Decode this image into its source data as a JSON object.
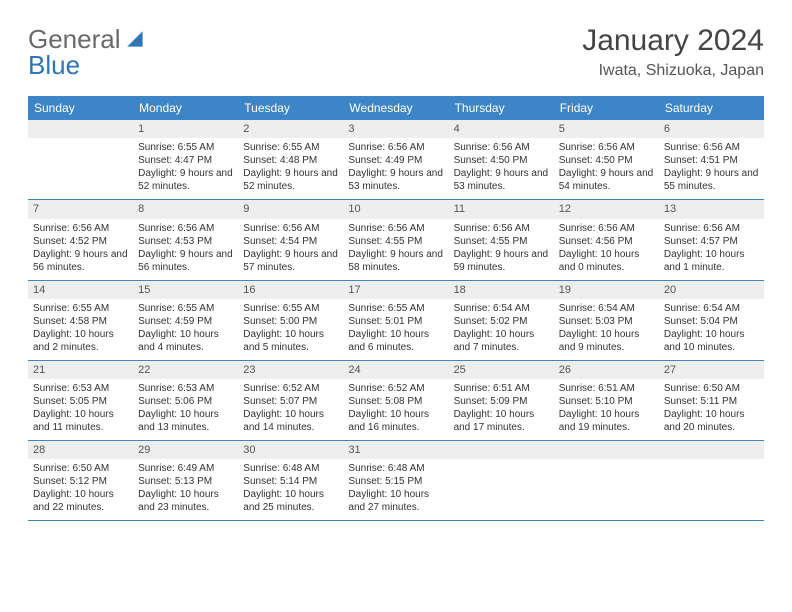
{
  "logo": {
    "text_a": "General",
    "text_b": "Blue"
  },
  "title": "January 2024",
  "location": "Iwata, Shizuoka, Japan",
  "colors": {
    "header_bg": "#3d85c6",
    "header_text": "#ffffff",
    "daynum_bg": "#eeeeee",
    "week_border": "#3d85c6",
    "logo_gray": "#6a6a6a",
    "logo_blue": "#2e75b6",
    "body_text": "#333333"
  },
  "day_names": [
    "Sunday",
    "Monday",
    "Tuesday",
    "Wednesday",
    "Thursday",
    "Friday",
    "Saturday"
  ],
  "weeks": [
    [
      {
        "n": "",
        "sr": "",
        "ss": "",
        "dl": ""
      },
      {
        "n": "1",
        "sr": "Sunrise: 6:55 AM",
        "ss": "Sunset: 4:47 PM",
        "dl": "Daylight: 9 hours and 52 minutes."
      },
      {
        "n": "2",
        "sr": "Sunrise: 6:55 AM",
        "ss": "Sunset: 4:48 PM",
        "dl": "Daylight: 9 hours and 52 minutes."
      },
      {
        "n": "3",
        "sr": "Sunrise: 6:56 AM",
        "ss": "Sunset: 4:49 PM",
        "dl": "Daylight: 9 hours and 53 minutes."
      },
      {
        "n": "4",
        "sr": "Sunrise: 6:56 AM",
        "ss": "Sunset: 4:50 PM",
        "dl": "Daylight: 9 hours and 53 minutes."
      },
      {
        "n": "5",
        "sr": "Sunrise: 6:56 AM",
        "ss": "Sunset: 4:50 PM",
        "dl": "Daylight: 9 hours and 54 minutes."
      },
      {
        "n": "6",
        "sr": "Sunrise: 6:56 AM",
        "ss": "Sunset: 4:51 PM",
        "dl": "Daylight: 9 hours and 55 minutes."
      }
    ],
    [
      {
        "n": "7",
        "sr": "Sunrise: 6:56 AM",
        "ss": "Sunset: 4:52 PM",
        "dl": "Daylight: 9 hours and 56 minutes."
      },
      {
        "n": "8",
        "sr": "Sunrise: 6:56 AM",
        "ss": "Sunset: 4:53 PM",
        "dl": "Daylight: 9 hours and 56 minutes."
      },
      {
        "n": "9",
        "sr": "Sunrise: 6:56 AM",
        "ss": "Sunset: 4:54 PM",
        "dl": "Daylight: 9 hours and 57 minutes."
      },
      {
        "n": "10",
        "sr": "Sunrise: 6:56 AM",
        "ss": "Sunset: 4:55 PM",
        "dl": "Daylight: 9 hours and 58 minutes."
      },
      {
        "n": "11",
        "sr": "Sunrise: 6:56 AM",
        "ss": "Sunset: 4:55 PM",
        "dl": "Daylight: 9 hours and 59 minutes."
      },
      {
        "n": "12",
        "sr": "Sunrise: 6:56 AM",
        "ss": "Sunset: 4:56 PM",
        "dl": "Daylight: 10 hours and 0 minutes."
      },
      {
        "n": "13",
        "sr": "Sunrise: 6:56 AM",
        "ss": "Sunset: 4:57 PM",
        "dl": "Daylight: 10 hours and 1 minute."
      }
    ],
    [
      {
        "n": "14",
        "sr": "Sunrise: 6:55 AM",
        "ss": "Sunset: 4:58 PM",
        "dl": "Daylight: 10 hours and 2 minutes."
      },
      {
        "n": "15",
        "sr": "Sunrise: 6:55 AM",
        "ss": "Sunset: 4:59 PM",
        "dl": "Daylight: 10 hours and 4 minutes."
      },
      {
        "n": "16",
        "sr": "Sunrise: 6:55 AM",
        "ss": "Sunset: 5:00 PM",
        "dl": "Daylight: 10 hours and 5 minutes."
      },
      {
        "n": "17",
        "sr": "Sunrise: 6:55 AM",
        "ss": "Sunset: 5:01 PM",
        "dl": "Daylight: 10 hours and 6 minutes."
      },
      {
        "n": "18",
        "sr": "Sunrise: 6:54 AM",
        "ss": "Sunset: 5:02 PM",
        "dl": "Daylight: 10 hours and 7 minutes."
      },
      {
        "n": "19",
        "sr": "Sunrise: 6:54 AM",
        "ss": "Sunset: 5:03 PM",
        "dl": "Daylight: 10 hours and 9 minutes."
      },
      {
        "n": "20",
        "sr": "Sunrise: 6:54 AM",
        "ss": "Sunset: 5:04 PM",
        "dl": "Daylight: 10 hours and 10 minutes."
      }
    ],
    [
      {
        "n": "21",
        "sr": "Sunrise: 6:53 AM",
        "ss": "Sunset: 5:05 PM",
        "dl": "Daylight: 10 hours and 11 minutes."
      },
      {
        "n": "22",
        "sr": "Sunrise: 6:53 AM",
        "ss": "Sunset: 5:06 PM",
        "dl": "Daylight: 10 hours and 13 minutes."
      },
      {
        "n": "23",
        "sr": "Sunrise: 6:52 AM",
        "ss": "Sunset: 5:07 PM",
        "dl": "Daylight: 10 hours and 14 minutes."
      },
      {
        "n": "24",
        "sr": "Sunrise: 6:52 AM",
        "ss": "Sunset: 5:08 PM",
        "dl": "Daylight: 10 hours and 16 minutes."
      },
      {
        "n": "25",
        "sr": "Sunrise: 6:51 AM",
        "ss": "Sunset: 5:09 PM",
        "dl": "Daylight: 10 hours and 17 minutes."
      },
      {
        "n": "26",
        "sr": "Sunrise: 6:51 AM",
        "ss": "Sunset: 5:10 PM",
        "dl": "Daylight: 10 hours and 19 minutes."
      },
      {
        "n": "27",
        "sr": "Sunrise: 6:50 AM",
        "ss": "Sunset: 5:11 PM",
        "dl": "Daylight: 10 hours and 20 minutes."
      }
    ],
    [
      {
        "n": "28",
        "sr": "Sunrise: 6:50 AM",
        "ss": "Sunset: 5:12 PM",
        "dl": "Daylight: 10 hours and 22 minutes."
      },
      {
        "n": "29",
        "sr": "Sunrise: 6:49 AM",
        "ss": "Sunset: 5:13 PM",
        "dl": "Daylight: 10 hours and 23 minutes."
      },
      {
        "n": "30",
        "sr": "Sunrise: 6:48 AM",
        "ss": "Sunset: 5:14 PM",
        "dl": "Daylight: 10 hours and 25 minutes."
      },
      {
        "n": "31",
        "sr": "Sunrise: 6:48 AM",
        "ss": "Sunset: 5:15 PM",
        "dl": "Daylight: 10 hours and 27 minutes."
      },
      {
        "n": "",
        "sr": "",
        "ss": "",
        "dl": ""
      },
      {
        "n": "",
        "sr": "",
        "ss": "",
        "dl": ""
      },
      {
        "n": "",
        "sr": "",
        "ss": "",
        "dl": ""
      }
    ]
  ]
}
